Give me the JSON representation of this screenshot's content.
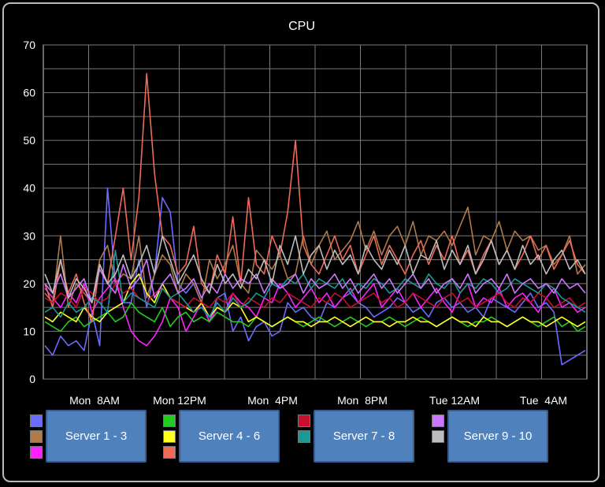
{
  "chart_data": {
    "type": "line",
    "title": "CPU",
    "xlabel": "",
    "ylabel": "",
    "ylim": [
      0,
      70
    ],
    "yticks": [
      0,
      10,
      20,
      30,
      40,
      50,
      60,
      70
    ],
    "x_tick_labels": [
      "Mon  8AM",
      "Mon 12PM",
      "Mon  4PM",
      "Mon  8PM",
      "Tue 12AM",
      "Tue  4AM"
    ],
    "grid": true,
    "legend_placement": "bottom",
    "legend_groups": [
      {
        "label": "Server 1 - 3",
        "colors": [
          "#6b6bff",
          "#b07a4a",
          "#ff22ff"
        ]
      },
      {
        "label": "Server 4 - 6",
        "colors": [
          "#22cc22",
          "#ffff22",
          "#f06a5a"
        ]
      },
      {
        "label": "Server 7 - 8",
        "colors": [
          "#c8102e",
          "#1a9a94"
        ]
      },
      {
        "label": "Server 9 - 10",
        "colors": [
          "#cc77ff",
          "#bdbdbd"
        ]
      }
    ],
    "series": [
      {
        "color": "#6b6bff",
        "values": [
          7,
          5,
          9,
          7,
          8,
          6,
          14,
          7,
          40,
          20,
          16,
          16,
          25,
          15,
          22,
          38,
          35,
          20,
          18,
          20,
          16,
          12,
          17,
          18,
          10,
          13,
          8,
          11,
          12,
          9,
          10,
          16,
          14,
          15,
          13,
          12,
          16,
          15,
          17,
          18,
          16,
          15,
          13,
          14,
          15,
          17,
          16,
          14,
          15,
          13,
          16,
          17,
          15,
          16,
          14,
          15,
          13,
          17,
          16,
          15,
          14,
          16,
          18,
          15,
          16,
          14,
          3,
          4,
          5,
          6
        ]
      },
      {
        "color": "#b07a4a",
        "values": [
          18,
          16,
          30,
          15,
          20,
          18,
          16,
          25,
          28,
          20,
          22,
          21,
          30,
          17,
          22,
          26,
          24,
          18,
          22,
          20,
          16,
          25,
          21,
          24,
          28,
          20,
          18,
          27,
          25,
          23,
          26,
          21,
          22,
          30,
          24,
          28,
          31,
          25,
          27,
          29,
          33,
          27,
          31,
          26,
          30,
          32,
          28,
          33,
          26,
          30,
          29,
          31,
          28,
          32,
          36,
          26,
          30,
          29,
          33,
          27,
          31,
          29,
          30,
          27,
          28,
          24,
          26,
          30,
          22,
          24
        ]
      },
      {
        "color": "#ff22ff",
        "values": [
          19,
          17,
          15,
          18,
          16,
          20,
          14,
          17,
          19,
          21,
          15,
          10,
          8,
          7,
          9,
          12,
          17,
          15,
          10,
          13,
          16,
          12,
          15,
          14,
          18,
          16,
          15,
          13,
          17,
          16,
          20,
          18,
          15,
          17,
          19,
          16,
          18,
          15,
          17,
          19,
          16,
          18,
          20,
          15,
          17,
          19,
          16,
          18,
          15,
          17,
          19,
          16,
          14,
          18,
          20,
          15,
          17,
          16,
          19,
          15,
          17,
          18,
          16,
          14,
          17,
          19,
          15,
          16,
          14,
          15
        ]
      },
      {
        "color": "#22cc22",
        "values": [
          12,
          11,
          10,
          12,
          13,
          11,
          12,
          13,
          14,
          12,
          13,
          16,
          14,
          13,
          12,
          15,
          11,
          13,
          14,
          12,
          13,
          12,
          14,
          13,
          12,
          12,
          11,
          13,
          12,
          11,
          12,
          13,
          12,
          11,
          12,
          13,
          12,
          11,
          12,
          13,
          12,
          11,
          12,
          12,
          13,
          12,
          11,
          12,
          13,
          12,
          11,
          12,
          13,
          12,
          11,
          12,
          12,
          13,
          12,
          11,
          12,
          13,
          12,
          11,
          12,
          13,
          11,
          12,
          10,
          11
        ]
      },
      {
        "color": "#ffff22",
        "values": [
          13,
          12,
          14,
          13,
          12,
          15,
          13,
          12,
          14,
          15,
          16,
          20,
          22,
          18,
          16,
          20,
          17,
          16,
          15,
          14,
          16,
          13,
          15,
          14,
          16,
          15,
          12,
          13,
          12,
          11,
          12,
          13,
          12,
          12,
          11,
          12,
          12,
          13,
          12,
          11,
          12,
          13,
          12,
          12,
          11,
          12,
          12,
          13,
          12,
          12,
          11,
          12,
          13,
          12,
          12,
          11,
          13,
          12,
          12,
          11,
          12,
          13,
          12,
          12,
          11,
          12,
          13,
          12,
          11,
          12
        ]
      },
      {
        "color": "#f06a5a",
        "values": [
          20,
          15,
          25,
          18,
          22,
          16,
          12,
          24,
          20,
          30,
          40,
          25,
          38,
          64,
          43,
          30,
          28,
          22,
          24,
          32,
          20,
          18,
          26,
          22,
          34,
          20,
          38,
          24,
          22,
          30,
          26,
          35,
          50,
          28,
          24,
          22,
          26,
          30,
          25,
          28,
          22,
          26,
          30,
          24,
          28,
          25,
          22,
          26,
          29,
          24,
          28,
          25,
          30,
          24,
          27,
          22,
          26,
          29,
          24,
          27,
          23,
          26,
          30,
          25,
          28,
          23,
          26,
          29,
          24,
          22
        ]
      },
      {
        "color": "#c8102e",
        "values": [
          17,
          16,
          18,
          17,
          15,
          19,
          18,
          16,
          17,
          20,
          18,
          19,
          17,
          16,
          18,
          19,
          17,
          16,
          15,
          17,
          16,
          15,
          17,
          16,
          18,
          15,
          17,
          16,
          15,
          17,
          16,
          18,
          17,
          16,
          15,
          17,
          16,
          18,
          17,
          15,
          16,
          17,
          18,
          16,
          17,
          15,
          16,
          18,
          17,
          16,
          15,
          17,
          18,
          16,
          17,
          15,
          16,
          17,
          18,
          16,
          15,
          17,
          16,
          18,
          17,
          15,
          16,
          17,
          15,
          16
        ]
      },
      {
        "color": "#1a9a94",
        "values": [
          14,
          15,
          13,
          16,
          14,
          15,
          17,
          16,
          14,
          27,
          16,
          18,
          17,
          16,
          15,
          19,
          17,
          18,
          16,
          14,
          15,
          13,
          16,
          14,
          17,
          15,
          16,
          18,
          17,
          20,
          19,
          21,
          20,
          22,
          19,
          21,
          20,
          19,
          21,
          18,
          20,
          19,
          21,
          20,
          18,
          19,
          21,
          20,
          19,
          22,
          20,
          19,
          21,
          18,
          20,
          19,
          21,
          20,
          18,
          19,
          21,
          20,
          19,
          18,
          20,
          19,
          17,
          16,
          15,
          14
        ]
      },
      {
        "color": "#cc77ff",
        "values": [
          20,
          18,
          22,
          17,
          19,
          21,
          16,
          23,
          20,
          18,
          24,
          19,
          21,
          25,
          17,
          20,
          22,
          18,
          19,
          21,
          17,
          20,
          18,
          22,
          19,
          21,
          20,
          22,
          18,
          21,
          19,
          20,
          22,
          18,
          21,
          19,
          20,
          22,
          19,
          21,
          18,
          20,
          22,
          19,
          21,
          18,
          20,
          22,
          19,
          21,
          18,
          20,
          21,
          19,
          22,
          18,
          20,
          21,
          19,
          22,
          18,
          20,
          21,
          19,
          20,
          18,
          21,
          19,
          20,
          18
        ]
      },
      {
        "color": "#bdbdbd",
        "values": [
          22,
          18,
          25,
          17,
          21,
          19,
          16,
          24,
          20,
          22,
          26,
          21,
          24,
          28,
          22,
          30,
          25,
          20,
          23,
          26,
          21,
          18,
          24,
          20,
          22,
          19,
          23,
          21,
          25,
          20,
          28,
          24,
          30,
          22,
          26,
          28,
          23,
          27,
          24,
          26,
          22,
          28,
          25,
          23,
          27,
          24,
          28,
          22,
          26,
          25,
          29,
          23,
          27,
          24,
          28,
          22,
          25,
          29,
          24,
          27,
          23,
          28,
          24,
          26,
          22,
          25,
          27,
          23,
          25,
          22
        ]
      }
    ]
  }
}
